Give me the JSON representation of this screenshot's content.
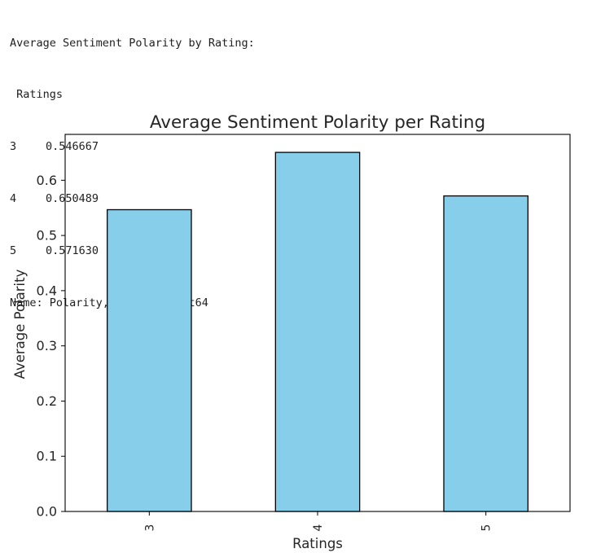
{
  "console": {
    "header": "Average Sentiment Polarity by Rating:",
    "index_name": " Ratings",
    "rows": [
      {
        "index": "3",
        "value": "0.546667"
      },
      {
        "index": "4",
        "value": "0.650489"
      },
      {
        "index": "5",
        "value": "0.571630"
      }
    ],
    "footer": "Name: Polarity, dtype: float64"
  },
  "chart_data": {
    "type": "bar",
    "title": "Average Sentiment Polarity per Rating",
    "xlabel": "Ratings",
    "ylabel": "Average Polarity",
    "categories": [
      "3",
      "4",
      "5"
    ],
    "values": [
      0.546667,
      0.650489,
      0.57163
    ],
    "ylim": [
      0,
      0.6831
    ],
    "yticks": [
      0.0,
      0.1,
      0.2,
      0.3,
      0.4,
      0.5,
      0.6
    ],
    "ytick_labels": [
      "0.0",
      "0.1",
      "0.2",
      "0.3",
      "0.4",
      "0.5",
      "0.6"
    ],
    "bar_color": "#87ceeb",
    "edge_color": "#000000",
    "grid": false,
    "xtick_rotation": "vertical"
  }
}
